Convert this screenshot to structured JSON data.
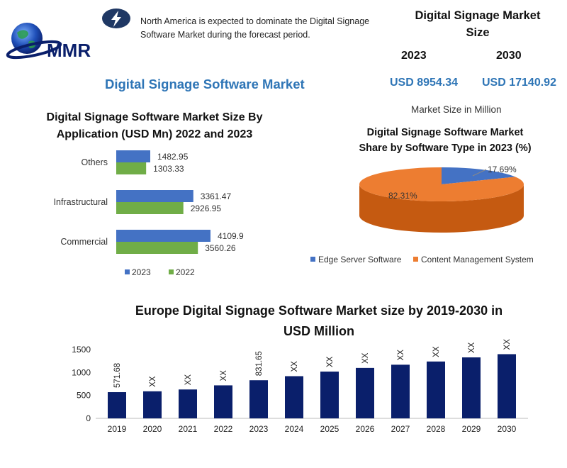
{
  "brand": {
    "logo_text": "MMR"
  },
  "headline": "North America is expected to dominate the Digital Signage Software Market during the forecast period.",
  "market_title": "Digital Signage Software Market",
  "market_size": {
    "title_line1": "Digital Signage Market",
    "title_line2": "Size",
    "year_a": "2023",
    "year_b": "2030",
    "value_a": "USD 8954.34",
    "value_b": "USD 17140.92",
    "unit": "Market Size in Million"
  },
  "colors": {
    "blue": "#4472c4",
    "green": "#70ad47",
    "orange": "#ed7d31",
    "navy": "#0a1f6b",
    "accent": "#2e75b6"
  },
  "chart_data": [
    {
      "type": "bar",
      "orientation": "horizontal",
      "title_line1": "Digital Signage Software Market Size By",
      "title_line2": "Application (USD Mn) 2022 and 2023",
      "categories": [
        "Others",
        "Infrastructural",
        "Commercial"
      ],
      "series": [
        {
          "name": "2023",
          "values": [
            1482.95,
            3361.47,
            4109.9
          ],
          "labels": [
            "1482.95",
            "3361.47",
            "4109.9"
          ]
        },
        {
          "name": "2022",
          "values": [
            1303.33,
            2926.95,
            3560.26
          ],
          "labels": [
            "1303.33",
            "2926.95",
            "3560.26"
          ]
        }
      ],
      "legend": "bottom"
    },
    {
      "type": "pie",
      "title_line1": "Digital Signage Software Market",
      "title_line2": "Share by Software Type in 2023 (%)",
      "slices": [
        {
          "name": "Edge Server Software",
          "value": 17.69,
          "label": "17.69%"
        },
        {
          "name": "Content Management System",
          "value": 82.31,
          "label": "82.31%"
        }
      ],
      "legend": "bottom"
    },
    {
      "type": "bar",
      "title_line1": "Europe Digital Signage Software Market size by 2019-2030 in",
      "title_line2": "USD Million",
      "categories": [
        "2019",
        "2020",
        "2021",
        "2022",
        "2023",
        "2024",
        "2025",
        "2026",
        "2027",
        "2028",
        "2029",
        "2030"
      ],
      "values": [
        571.68,
        590,
        630,
        720,
        831.65,
        920,
        1020,
        1100,
        1170,
        1240,
        1330,
        1400
      ],
      "labels": [
        "571.68",
        "XX",
        "XX",
        "XX",
        "831.65",
        "XX",
        "XX",
        "XX",
        "XX",
        "XX",
        "XX",
        "XX"
      ],
      "yticks": [
        "0",
        "500",
        "1000",
        "1500"
      ],
      "ylim": [
        0,
        1500
      ]
    }
  ]
}
